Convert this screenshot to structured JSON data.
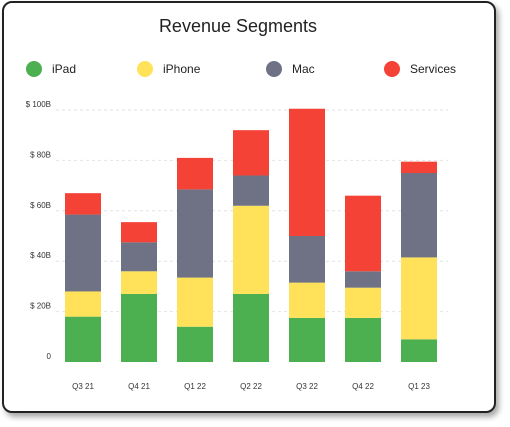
{
  "chart_data": {
    "type": "bar",
    "stacked": true,
    "title": "Revenue Segments",
    "xlabel": "",
    "ylabel": "",
    "ylim": [
      0,
      100
    ],
    "y_ticks": [
      0,
      20,
      40,
      60,
      80,
      100
    ],
    "y_tick_labels": [
      "0",
      "$ 20B",
      "$ 40B",
      "$ 60B",
      "$ 80B",
      "$ 100B"
    ],
    "grid": true,
    "legend_position": "top",
    "categories": [
      "Q3 21",
      "Q4 21",
      "Q1 22",
      "Q2 22",
      "Q3 22",
      "Q4 22",
      "Q1 23"
    ],
    "series": [
      {
        "name": "iPad",
        "color": "#4caf50",
        "values": [
          18,
          27,
          14,
          27,
          17.5,
          17.5,
          9
        ]
      },
      {
        "name": "iPhone",
        "color": "#ffe25a",
        "values": [
          10,
          9,
          19.5,
          35,
          14,
          12,
          32.5
        ]
      },
      {
        "name": "Mac",
        "color": "#6e7284",
        "values": [
          30.5,
          11.5,
          35,
          12,
          18.5,
          6.5,
          33.5
        ]
      },
      {
        "name": "Services",
        "color": "#f44336",
        "values": [
          8.5,
          8,
          12.5,
          18,
          50.5,
          30,
          4.5
        ]
      }
    ]
  }
}
